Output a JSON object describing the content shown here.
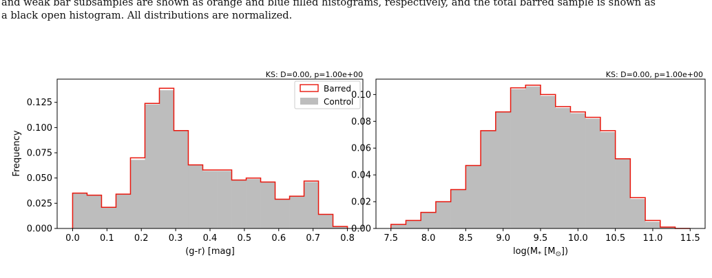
{
  "caption": {
    "line1": "and weak bar subsamples are shown as orange and blue filled histograms, respectively, and the total barred sample is shown as",
    "line2": "a black open histogram. All distributions are normalized."
  },
  "colors": {
    "barred": "#e8160c",
    "control": "#bdbdbd"
  },
  "chart_data": [
    {
      "type": "histogram",
      "ks_text": "KS: D=0.00, p=1.00e+00",
      "xlabel": "(g-r) [mag]",
      "ylabel": "Frequency",
      "xlim": [
        -0.045,
        0.845
      ],
      "ylim": [
        0,
        0.148
      ],
      "xticks": [
        0.0,
        0.1,
        0.2,
        0.3,
        0.4,
        0.5,
        0.6,
        0.7,
        0.8
      ],
      "xtick_labels": [
        "0.0",
        "0.1",
        "0.2",
        "0.3",
        "0.4",
        "0.5",
        "0.6",
        "0.7",
        "0.8"
      ],
      "yticks": [
        0.0,
        0.025,
        0.05,
        0.075,
        0.1,
        0.125
      ],
      "ytick_labels": [
        "0.000",
        "0.025",
        "0.050",
        "0.075",
        "0.100",
        "0.125"
      ],
      "bin_edges": [
        0.0,
        0.0421,
        0.0842,
        0.1263,
        0.1684,
        0.2105,
        0.2526,
        0.2947,
        0.3368,
        0.3789,
        0.4211,
        0.4632,
        0.5053,
        0.5474,
        0.5895,
        0.6316,
        0.6737,
        0.7158,
        0.7579,
        0.8
      ],
      "legend": {
        "placement": "top-right",
        "entries": [
          "Barred",
          "Control"
        ]
      },
      "series": [
        {
          "name": "Barred",
          "style": "step",
          "values": [
            0.035,
            0.033,
            0.021,
            0.034,
            0.07,
            0.124,
            0.139,
            0.097,
            0.063,
            0.058,
            0.058,
            0.048,
            0.05,
            0.046,
            0.029,
            0.032,
            0.047,
            0.014,
            0.002
          ]
        },
        {
          "name": "Control",
          "style": "filled",
          "values": [
            0.035,
            0.033,
            0.021,
            0.034,
            0.068,
            0.123,
            0.137,
            0.097,
            0.063,
            0.057,
            0.057,
            0.048,
            0.049,
            0.046,
            0.029,
            0.032,
            0.046,
            0.014,
            0.002
          ]
        }
      ]
    },
    {
      "type": "histogram",
      "ks_text": "KS: D=0.00, p=1.00e+00",
      "xlabel": "log(M",
      "xlabel_sub1": "*",
      "xlabel_mid": " [M",
      "xlabel_sub2": "⊙",
      "xlabel_end": "])",
      "ylabel": "",
      "xlim": [
        7.3,
        11.7
      ],
      "ylim": [
        0,
        0.1115
      ],
      "xticks": [
        7.5,
        8.0,
        8.5,
        9.0,
        9.5,
        10.0,
        10.5,
        11.0,
        11.5
      ],
      "xtick_labels": [
        "7.5",
        "8.0",
        "8.5",
        "9.0",
        "9.5",
        "10.0",
        "10.5",
        "11.0",
        "11.5"
      ],
      "yticks": [
        0.0,
        0.02,
        0.04,
        0.06,
        0.08,
        0.1
      ],
      "ytick_labels": [
        "0.00",
        "0.02",
        "0.04",
        "0.06",
        "0.08",
        "0.10"
      ],
      "bin_edges": [
        7.5,
        7.7,
        7.9,
        8.1,
        8.3,
        8.5,
        8.7,
        8.9,
        9.1,
        9.3,
        9.5,
        9.7,
        9.9,
        10.1,
        10.3,
        10.5,
        10.7,
        10.9,
        11.1,
        11.3,
        11.5
      ],
      "series": [
        {
          "name": "Barred",
          "style": "step",
          "values": [
            0.003,
            0.006,
            0.012,
            0.02,
            0.029,
            0.047,
            0.073,
            0.087,
            0.105,
            0.107,
            0.1,
            0.091,
            0.087,
            0.083,
            0.073,
            0.052,
            0.023,
            0.006,
            0.001,
            0.0
          ]
        },
        {
          "name": "Control",
          "style": "filled",
          "values": [
            0.003,
            0.006,
            0.012,
            0.02,
            0.029,
            0.047,
            0.073,
            0.087,
            0.104,
            0.106,
            0.099,
            0.09,
            0.086,
            0.082,
            0.072,
            0.052,
            0.022,
            0.005,
            0.001,
            0.0
          ]
        }
      ]
    }
  ]
}
